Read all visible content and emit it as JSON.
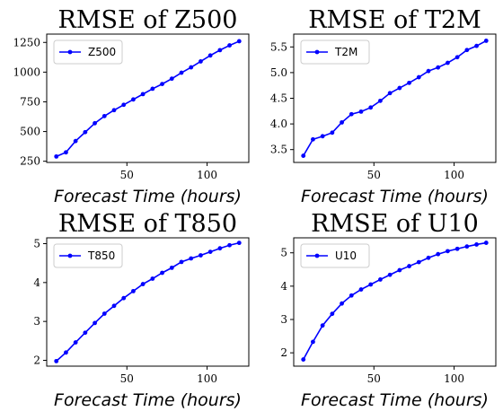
{
  "chart_data": [
    {
      "type": "line",
      "title": "RMSE of Z500",
      "xlabel": "Forecast Time (hours)",
      "ylabel": "",
      "xlim": [
        0,
        126
      ],
      "ylim": [
        240,
        1320
      ],
      "xticks": [
        50,
        100
      ],
      "yticks": [
        250,
        500,
        750,
        1000,
        1250
      ],
      "legend": "top-left",
      "grid": false,
      "series": [
        {
          "name": "Z500",
          "color": "#0000ff",
          "x": [
            6,
            12,
            18,
            24,
            30,
            36,
            42,
            48,
            54,
            60,
            66,
            72,
            78,
            84,
            90,
            96,
            102,
            108,
            114,
            120
          ],
          "y": [
            290,
            325,
            420,
            495,
            570,
            630,
            680,
            725,
            770,
            815,
            860,
            900,
            945,
            995,
            1040,
            1090,
            1140,
            1185,
            1225,
            1260
          ]
        }
      ]
    },
    {
      "type": "line",
      "title": "RMSE of T2M",
      "xlabel": "Forecast Time (hours)",
      "ylabel": "",
      "xlim": [
        0,
        126
      ],
      "ylim": [
        3.25,
        5.75
      ],
      "xticks": [
        50,
        100
      ],
      "yticks": [
        3.5,
        4.0,
        4.5,
        5.0,
        5.5
      ],
      "legend": "top-left",
      "grid": false,
      "series": [
        {
          "name": "T2M",
          "color": "#0000ff",
          "x": [
            6,
            12,
            18,
            24,
            30,
            36,
            42,
            48,
            54,
            60,
            66,
            72,
            78,
            84,
            90,
            96,
            102,
            108,
            114,
            120
          ],
          "y": [
            3.38,
            3.7,
            3.76,
            3.83,
            4.03,
            4.19,
            4.24,
            4.32,
            4.45,
            4.6,
            4.7,
            4.8,
            4.91,
            5.03,
            5.1,
            5.19,
            5.3,
            5.44,
            5.52,
            5.62
          ]
        }
      ]
    },
    {
      "type": "line",
      "title": "RMSE of T850",
      "xlabel": "Forecast Time (hours)",
      "ylabel": "",
      "xlim": [
        0,
        126
      ],
      "ylim": [
        1.85,
        5.15
      ],
      "xticks": [
        50,
        100
      ],
      "yticks": [
        2,
        3,
        4,
        5
      ],
      "legend": "top-left",
      "grid": false,
      "series": [
        {
          "name": "T850",
          "color": "#0000ff",
          "x": [
            6,
            12,
            18,
            24,
            30,
            36,
            42,
            48,
            54,
            60,
            66,
            72,
            78,
            84,
            90,
            96,
            102,
            108,
            114,
            120
          ],
          "y": [
            1.98,
            2.2,
            2.46,
            2.71,
            2.96,
            3.2,
            3.4,
            3.6,
            3.78,
            3.96,
            4.1,
            4.25,
            4.38,
            4.53,
            4.62,
            4.7,
            4.79,
            4.88,
            4.96,
            5.02
          ]
        }
      ]
    },
    {
      "type": "line",
      "title": "RMSE of U10",
      "xlabel": "Forecast Time (hours)",
      "ylabel": "",
      "xlim": [
        0,
        126
      ],
      "ylim": [
        1.6,
        5.45
      ],
      "xticks": [
        50,
        100
      ],
      "yticks": [
        2,
        3,
        4,
        5
      ],
      "legend": "top-left",
      "grid": false,
      "series": [
        {
          "name": "U10",
          "color": "#0000ff",
          "x": [
            6,
            12,
            18,
            24,
            30,
            36,
            42,
            48,
            54,
            60,
            66,
            72,
            78,
            84,
            90,
            96,
            102,
            108,
            114,
            120
          ],
          "y": [
            1.8,
            2.33,
            2.82,
            3.17,
            3.48,
            3.72,
            3.9,
            4.05,
            4.2,
            4.34,
            4.48,
            4.6,
            4.72,
            4.85,
            4.96,
            5.05,
            5.12,
            5.19,
            5.25,
            5.3
          ]
        }
      ]
    }
  ]
}
